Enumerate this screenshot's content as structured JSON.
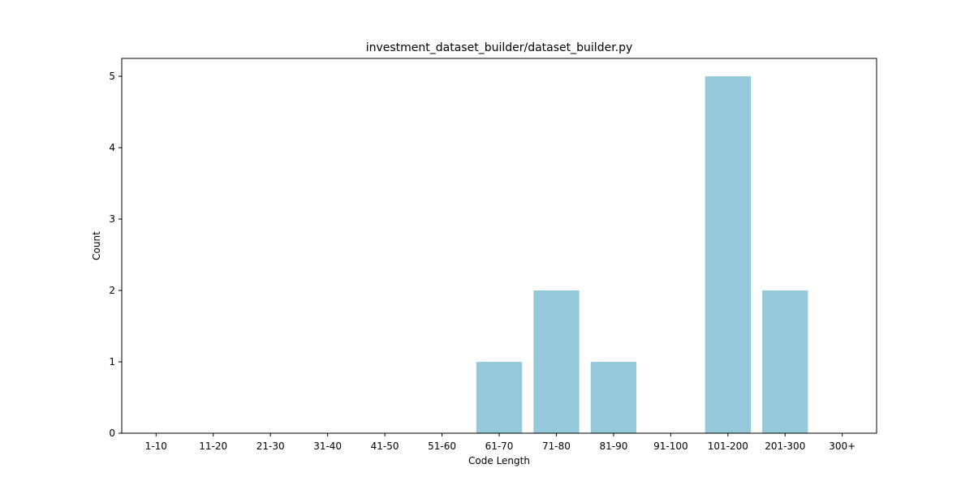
{
  "chart_data": {
    "type": "bar",
    "title": "investment_dataset_builder/dataset_builder.py",
    "xlabel": "Code Length",
    "ylabel": "Count",
    "categories": [
      "1-10",
      "11-20",
      "21-30",
      "31-40",
      "41-50",
      "51-60",
      "61-70",
      "71-80",
      "81-90",
      "91-100",
      "101-200",
      "201-300",
      "300+"
    ],
    "values": [
      0,
      0,
      0,
      0,
      0,
      0,
      1,
      2,
      1,
      0,
      5,
      2,
      0
    ],
    "yticks": [
      0,
      1,
      2,
      3,
      4,
      5
    ],
    "ylim": [
      0,
      5.25
    ],
    "grid": false,
    "legend": "none",
    "bar_color": "#96c9dc"
  }
}
